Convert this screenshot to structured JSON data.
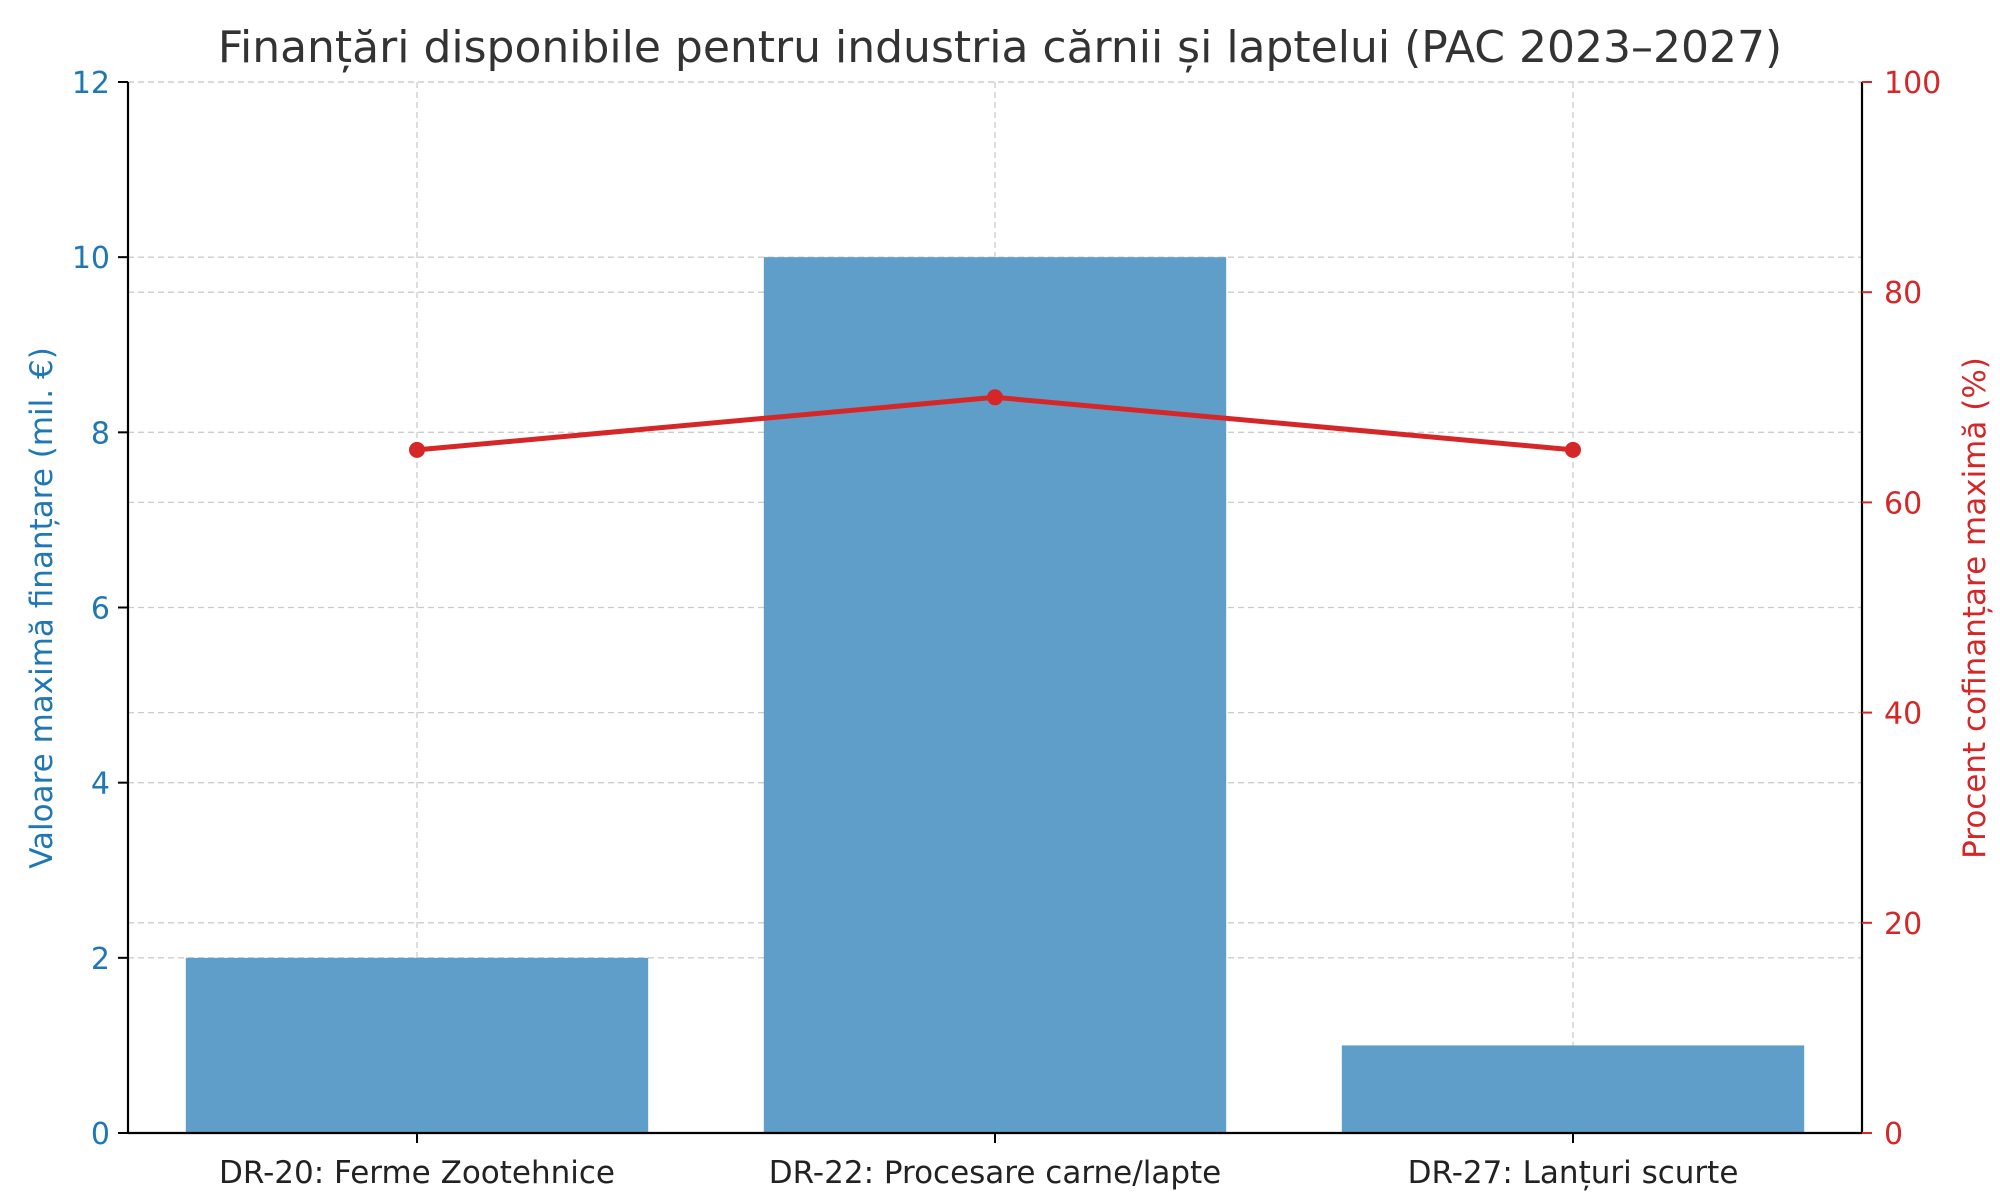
{
  "chart_data": {
    "type": "bar",
    "title": "Finanțări disponibile pentru industria cărnii și laptelui (PAC 2023–2027)",
    "categories": [
      "DR-20: Ferme Zootehnice",
      "DR-22: Procesare carne/lapte",
      "DR-27: Lanțuri scurte"
    ],
    "series": [
      {
        "type": "bar",
        "axis": "left",
        "values": [
          2,
          10,
          1
        ],
        "color": "#5f9ec9"
      },
      {
        "type": "line",
        "axis": "right",
        "values": [
          65,
          70,
          65
        ],
        "color": "#d62728"
      }
    ],
    "ylabel": "Valoare maximă finanțare (mil. €)",
    "ylabel_color": "#1f77b4",
    "ylim": [
      0,
      12
    ],
    "yticks": [
      "0",
      "2",
      "4",
      "6",
      "8",
      "10",
      "12"
    ],
    "y2label": "Procent cofinanțare maximă (%)",
    "y2label_color": "#d62728",
    "y2lim": [
      0,
      100
    ],
    "y2ticks": [
      "0",
      "20",
      "40",
      "60",
      "80",
      "100"
    ],
    "grid": true
  }
}
